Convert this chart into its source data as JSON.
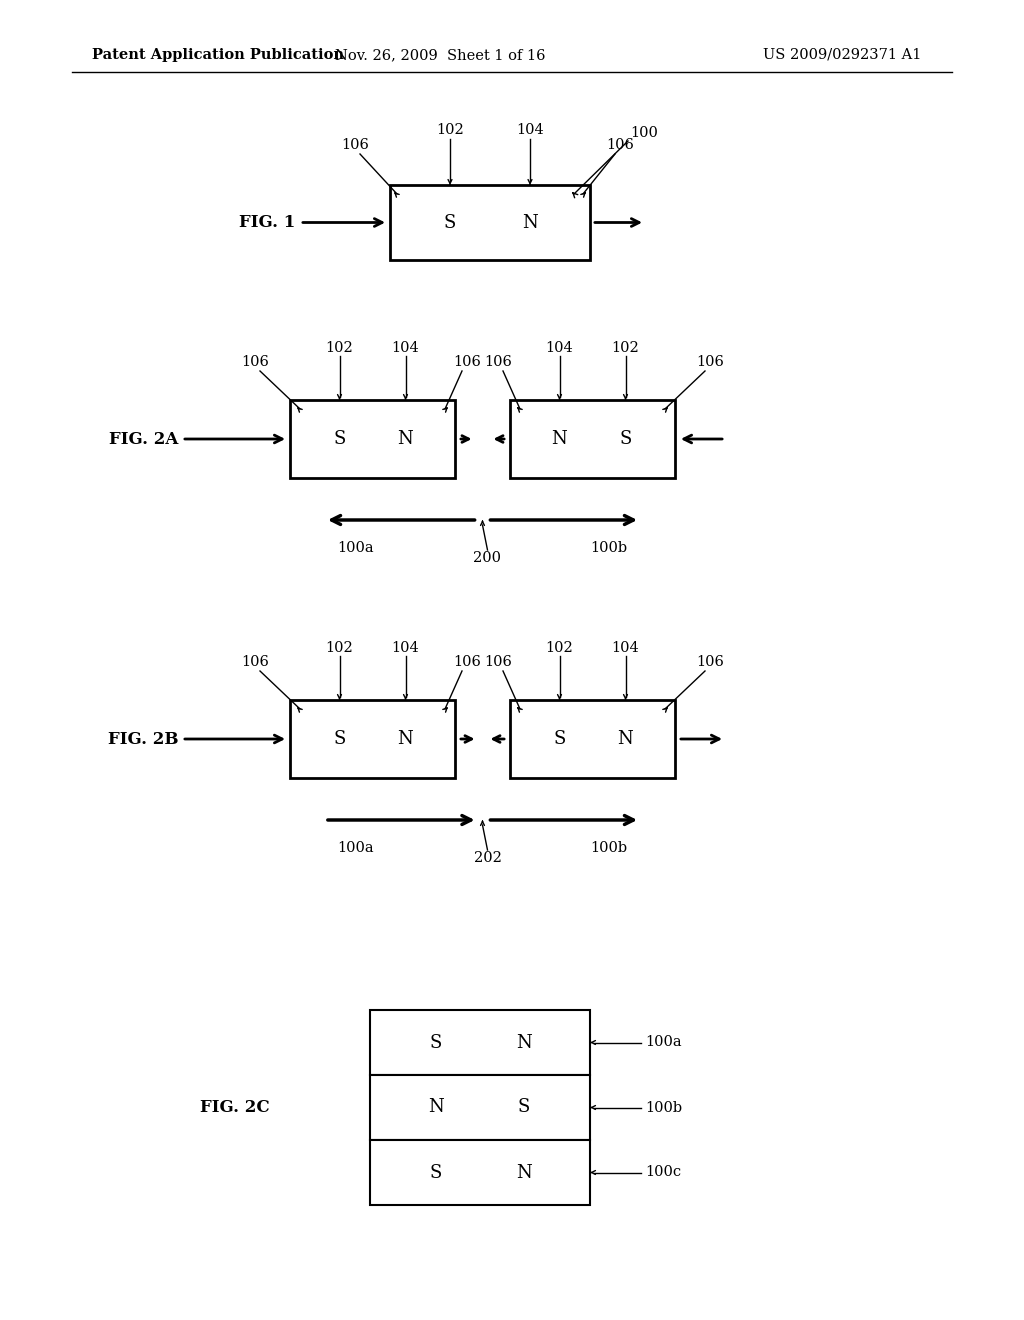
{
  "background_color": "#ffffff",
  "header_left": "Patent Application Publication",
  "header_mid": "Nov. 26, 2009  Sheet 1 of 16",
  "header_right": "US 2009/0292371 A1"
}
